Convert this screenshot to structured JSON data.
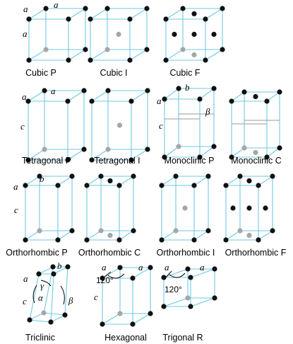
{
  "figure": {
    "edge_colors": {
      "outer": "#6fc8e6",
      "inner": "#9a9a9a"
    },
    "atom_colors": {
      "front": "#111111",
      "hidden": "#a6a6a6"
    },
    "lattices": [
      {
        "id": "cubic-p",
        "label": "Cubic P",
        "centering": "P",
        "params": [
          "a",
          "a",
          "a"
        ]
      },
      {
        "id": "cubic-i",
        "label": "Cubic I",
        "centering": "I",
        "params": []
      },
      {
        "id": "cubic-f",
        "label": "Cubic F",
        "centering": "F",
        "params": []
      },
      {
        "id": "tetragonal-p",
        "label": "Tetragonal P",
        "centering": "P",
        "params": [
          "a",
          "a",
          "c"
        ]
      },
      {
        "id": "tetragonal-i",
        "label": "Tetragonal I",
        "centering": "I",
        "params": []
      },
      {
        "id": "monoclinic-p",
        "label": "Monoclinic P",
        "centering": "P",
        "params": [
          "a",
          "b",
          "c",
          "β"
        ]
      },
      {
        "id": "monoclinic-c",
        "label": "Monoclinic C",
        "centering": "C",
        "params": []
      },
      {
        "id": "orthorhombic-p",
        "label": "Orthorhombic P",
        "centering": "P",
        "params": [
          "a",
          "b",
          "c"
        ]
      },
      {
        "id": "orthorhombic-c",
        "label": "Orthorhombic C",
        "centering": "C",
        "params": []
      },
      {
        "id": "orthorhombic-i",
        "label": "Orthorhombic I",
        "centering": "I",
        "params": []
      },
      {
        "id": "orthorhombic-f",
        "label": "Orthorhombic F",
        "centering": "F",
        "params": []
      },
      {
        "id": "triclinic",
        "label": "Triclinic",
        "centering": "P",
        "params": [
          "a",
          "b",
          "c",
          "α",
          "β",
          "γ"
        ]
      },
      {
        "id": "hexagonal",
        "label": "Hexagonal",
        "centering": "P",
        "params": [
          "a",
          "a",
          "c",
          "120°"
        ]
      },
      {
        "id": "trigonal-r",
        "label": "Trigonal R",
        "centering": "R",
        "params": [
          "a",
          "a",
          "120°"
        ]
      }
    ]
  }
}
